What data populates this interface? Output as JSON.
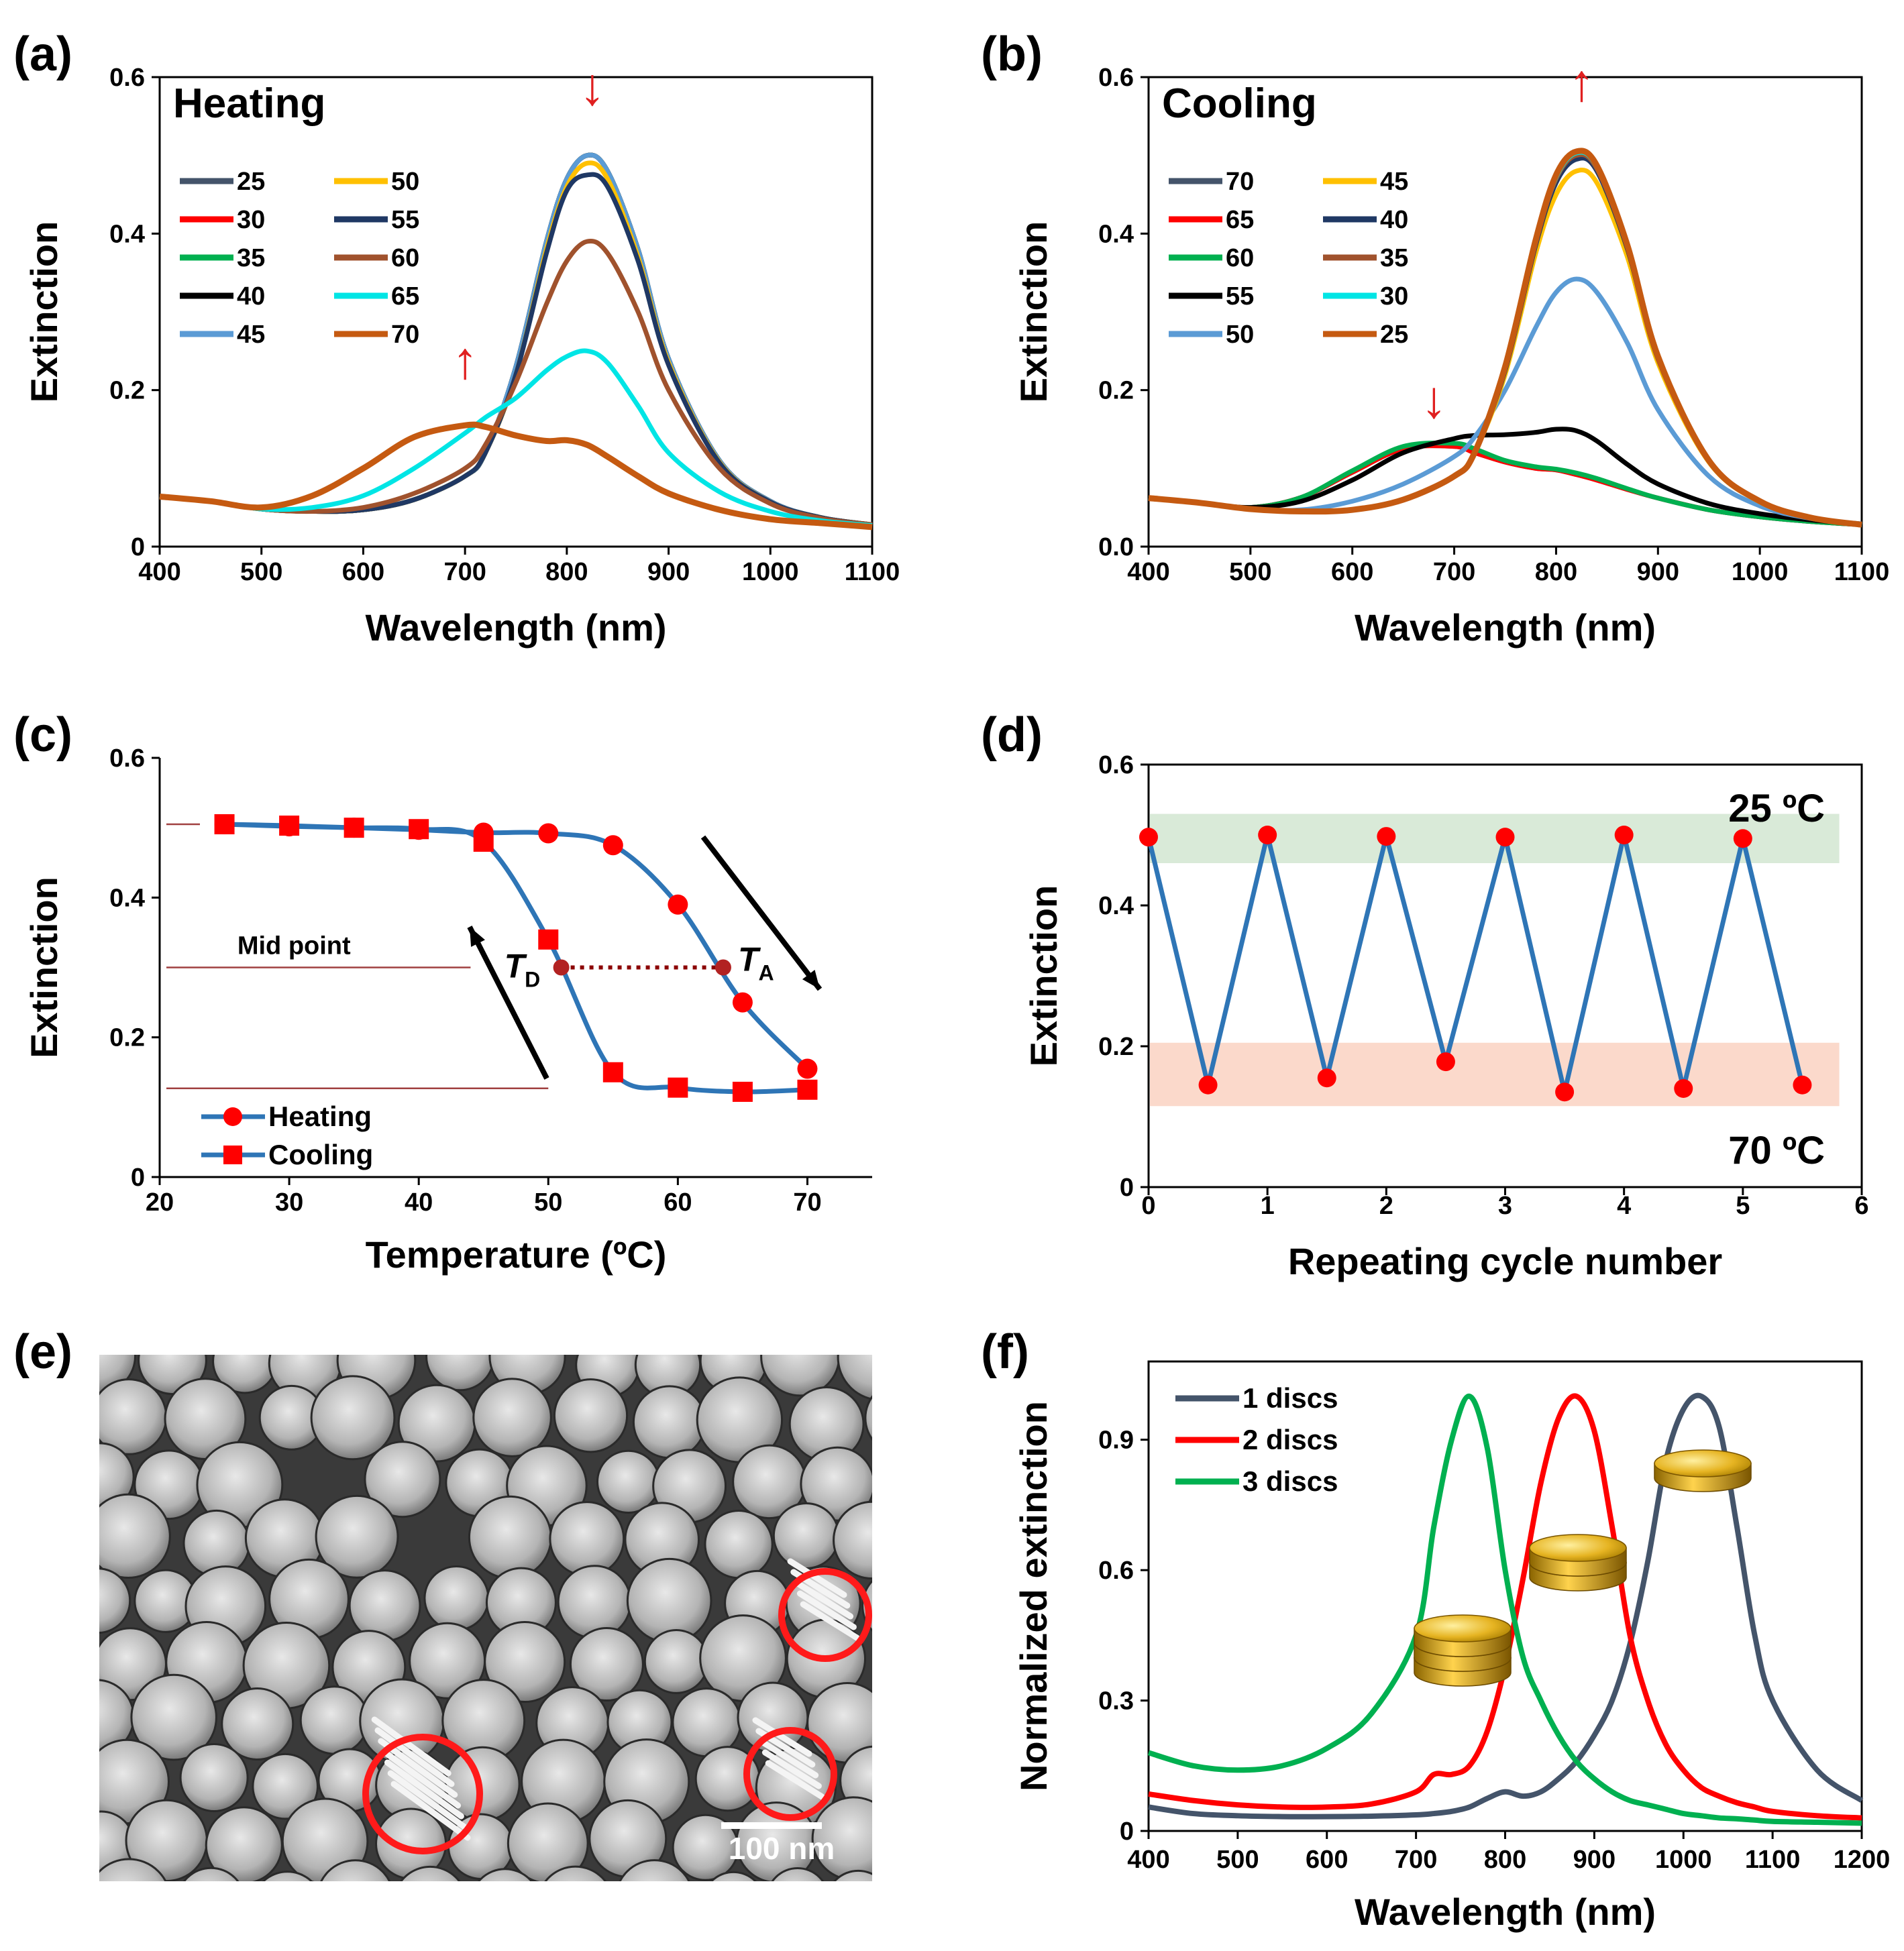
{
  "chart_data": [
    {
      "id": "a",
      "type": "line",
      "panel_label": "(a)",
      "title": "Heating",
      "xlabel": "Wavelength (nm)",
      "ylabel": "Extinction",
      "xlim": [
        400,
        1100
      ],
      "ylim": [
        0,
        0.6
      ],
      "xticks": [
        400,
        500,
        600,
        700,
        800,
        900,
        1000,
        1100
      ],
      "yticks": [
        0,
        0.2,
        0.4,
        0.6
      ],
      "ytick_labels": [
        "0",
        "0.2",
        "0.4",
        "0.6"
      ],
      "legend_position": "top-left",
      "x": [
        400,
        450,
        500,
        550,
        600,
        650,
        700,
        720,
        750,
        780,
        800,
        820,
        840,
        870,
        900,
        950,
        1000,
        1050,
        1100
      ],
      "series": [
        {
          "name": "25",
          "color": "#44546a",
          "values": [
            0.064,
            0.058,
            0.048,
            0.045,
            0.047,
            0.06,
            0.09,
            0.12,
            0.23,
            0.39,
            0.47,
            0.5,
            0.48,
            0.38,
            0.24,
            0.11,
            0.058,
            0.037,
            0.028
          ]
        },
        {
          "name": "30",
          "color": "#ff0000",
          "values": [
            0.064,
            0.058,
            0.048,
            0.045,
            0.047,
            0.06,
            0.09,
            0.12,
            0.23,
            0.39,
            0.47,
            0.5,
            0.48,
            0.38,
            0.24,
            0.11,
            0.058,
            0.037,
            0.028
          ]
        },
        {
          "name": "35",
          "color": "#00b050",
          "values": [
            0.064,
            0.058,
            0.048,
            0.045,
            0.047,
            0.06,
            0.09,
            0.12,
            0.23,
            0.39,
            0.47,
            0.5,
            0.48,
            0.38,
            0.24,
            0.11,
            0.058,
            0.037,
            0.028
          ]
        },
        {
          "name": "40",
          "color": "#000000",
          "values": [
            0.064,
            0.058,
            0.048,
            0.045,
            0.047,
            0.06,
            0.09,
            0.12,
            0.23,
            0.39,
            0.47,
            0.5,
            0.48,
            0.38,
            0.24,
            0.11,
            0.058,
            0.037,
            0.028
          ]
        },
        {
          "name": "45",
          "color": "#5b9bd5",
          "values": [
            0.064,
            0.058,
            0.048,
            0.045,
            0.047,
            0.06,
            0.09,
            0.12,
            0.23,
            0.39,
            0.47,
            0.5,
            0.48,
            0.38,
            0.24,
            0.11,
            0.058,
            0.037,
            0.028
          ]
        },
        {
          "name": "50",
          "color": "#ffc000",
          "values": [
            0.064,
            0.058,
            0.048,
            0.045,
            0.047,
            0.06,
            0.09,
            0.12,
            0.22,
            0.38,
            0.46,
            0.49,
            0.47,
            0.37,
            0.235,
            0.108,
            0.057,
            0.037,
            0.028
          ]
        },
        {
          "name": "55",
          "color": "#1f3864",
          "values": [
            0.064,
            0.058,
            0.048,
            0.045,
            0.047,
            0.06,
            0.09,
            0.12,
            0.22,
            0.375,
            0.455,
            0.475,
            0.46,
            0.365,
            0.232,
            0.107,
            0.057,
            0.037,
            0.028
          ]
        },
        {
          "name": "60",
          "color": "#a0522d",
          "values": [
            0.064,
            0.058,
            0.048,
            0.045,
            0.05,
            0.068,
            0.1,
            0.13,
            0.21,
            0.31,
            0.365,
            0.39,
            0.375,
            0.3,
            0.2,
            0.1,
            0.055,
            0.036,
            0.028
          ]
        },
        {
          "name": "65",
          "color": "#00e5e5",
          "values": [
            0.064,
            0.058,
            0.048,
            0.05,
            0.065,
            0.1,
            0.145,
            0.165,
            0.19,
            0.225,
            0.243,
            0.25,
            0.235,
            0.18,
            0.12,
            0.07,
            0.045,
            0.033,
            0.027
          ]
        },
        {
          "name": "70",
          "color": "#c55a11",
          "values": [
            0.064,
            0.058,
            0.05,
            0.065,
            0.1,
            0.14,
            0.155,
            0.153,
            0.142,
            0.135,
            0.136,
            0.13,
            0.115,
            0.09,
            0.068,
            0.047,
            0.035,
            0.03,
            0.025
          ]
        }
      ],
      "annotations": [
        {
          "text": "↓",
          "x": 825,
          "y": 0.565,
          "color": "#e02020"
        },
        {
          "text": "↑",
          "x": 700,
          "y": 0.215,
          "color": "#e02020"
        }
      ]
    },
    {
      "id": "b",
      "type": "line",
      "panel_label": "(b)",
      "title": "Cooling",
      "xlabel": "Wavelength (nm)",
      "ylabel": "Extinction",
      "xlim": [
        400,
        1100
      ],
      "ylim": [
        0,
        0.6
      ],
      "xticks": [
        400,
        500,
        600,
        700,
        800,
        900,
        1000,
        1100
      ],
      "yticks": [
        0,
        0.2,
        0.4,
        0.6
      ],
      "ytick_labels": [
        "0.0",
        "0.2",
        "0.4",
        "0.6"
      ],
      "legend_position": "top-left",
      "x": [
        400,
        450,
        500,
        550,
        600,
        650,
        700,
        720,
        750,
        780,
        800,
        820,
        840,
        870,
        900,
        950,
        1000,
        1050,
        1100
      ],
      "series": [
        {
          "name": "70",
          "color": "#44546a",
          "values": [
            0.062,
            0.056,
            0.05,
            0.063,
            0.095,
            0.125,
            0.128,
            0.12,
            0.108,
            0.1,
            0.098,
            0.092,
            0.085,
            0.073,
            0.062,
            0.047,
            0.038,
            0.032,
            0.028
          ]
        },
        {
          "name": "65",
          "color": "#ff0000",
          "values": [
            0.062,
            0.056,
            0.05,
            0.063,
            0.095,
            0.125,
            0.128,
            0.12,
            0.108,
            0.1,
            0.098,
            0.092,
            0.085,
            0.073,
            0.062,
            0.047,
            0.038,
            0.032,
            0.028
          ]
        },
        {
          "name": "60",
          "color": "#00b050",
          "values": [
            0.062,
            0.056,
            0.05,
            0.063,
            0.097,
            0.128,
            0.132,
            0.125,
            0.11,
            0.102,
            0.099,
            0.094,
            0.087,
            0.074,
            0.062,
            0.047,
            0.038,
            0.032,
            0.028
          ]
        },
        {
          "name": "55",
          "color": "#000000",
          "values": [
            0.062,
            0.056,
            0.05,
            0.058,
            0.085,
            0.12,
            0.138,
            0.142,
            0.143,
            0.146,
            0.15,
            0.148,
            0.135,
            0.105,
            0.08,
            0.055,
            0.042,
            0.034,
            0.029
          ]
        },
        {
          "name": "50",
          "color": "#5b9bd5",
          "values": [
            0.062,
            0.056,
            0.048,
            0.047,
            0.058,
            0.08,
            0.115,
            0.14,
            0.2,
            0.28,
            0.325,
            0.342,
            0.325,
            0.26,
            0.175,
            0.09,
            0.052,
            0.036,
            0.029
          ]
        },
        {
          "name": "45",
          "color": "#ffc000",
          "values": [
            0.062,
            0.056,
            0.048,
            0.045,
            0.047,
            0.06,
            0.09,
            0.12,
            0.22,
            0.375,
            0.45,
            0.48,
            0.465,
            0.37,
            0.235,
            0.108,
            0.057,
            0.037,
            0.028
          ]
        },
        {
          "name": "40",
          "color": "#1f3864",
          "values": [
            0.062,
            0.056,
            0.048,
            0.045,
            0.047,
            0.06,
            0.09,
            0.12,
            0.225,
            0.385,
            0.465,
            0.495,
            0.48,
            0.38,
            0.24,
            0.11,
            0.058,
            0.037,
            0.028
          ]
        },
        {
          "name": "35",
          "color": "#a0522d",
          "values": [
            0.062,
            0.056,
            0.048,
            0.045,
            0.047,
            0.06,
            0.09,
            0.12,
            0.227,
            0.388,
            0.47,
            0.5,
            0.483,
            0.382,
            0.241,
            0.11,
            0.058,
            0.037,
            0.028
          ]
        },
        {
          "name": "30",
          "color": "#00e5e5",
          "values": [
            0.062,
            0.056,
            0.048,
            0.045,
            0.047,
            0.06,
            0.09,
            0.12,
            0.228,
            0.39,
            0.472,
            0.503,
            0.485,
            0.383,
            0.242,
            0.11,
            0.058,
            0.037,
            0.028
          ]
        },
        {
          "name": "25",
          "color": "#c55a11",
          "values": [
            0.062,
            0.056,
            0.048,
            0.045,
            0.047,
            0.06,
            0.09,
            0.12,
            0.23,
            0.392,
            0.475,
            0.505,
            0.487,
            0.385,
            0.243,
            0.11,
            0.058,
            0.037,
            0.028
          ]
        }
      ],
      "annotations": [
        {
          "text": "↑",
          "x": 825,
          "y": 0.57,
          "color": "#e02020"
        },
        {
          "text": "↓",
          "x": 680,
          "y": 0.165,
          "color": "#e02020"
        }
      ]
    },
    {
      "id": "c",
      "type": "line",
      "panel_label": "(c)",
      "xlabel": "Temperature (ºC)",
      "ylabel": "Extinction",
      "xlim": [
        20,
        75
      ],
      "ylim": [
        0,
        0.6
      ],
      "xticks": [
        20,
        30,
        40,
        50,
        60,
        70
      ],
      "yticks": [
        0,
        0.2,
        0.4,
        0.6
      ],
      "ytick_labels": [
        "0",
        "0.2",
        "0.4",
        "0.6"
      ],
      "legend_position": "bottom-left",
      "x": [
        25,
        30,
        35,
        40,
        45,
        50,
        55,
        60,
        65,
        70
      ],
      "series": [
        {
          "name": "Heating",
          "marker": "circle",
          "line_color": "#2e75b6",
          "marker_color": "#ff0000",
          "values": [
            0.505,
            0.502,
            0.5,
            0.497,
            0.493,
            0.492,
            0.475,
            0.39,
            0.25,
            0.155
          ]
        },
        {
          "name": "Cooling",
          "marker": "square",
          "line_color": "#2e75b6",
          "marker_color": "#ff0000",
          "values": [
            0.505,
            0.503,
            0.5,
            0.498,
            0.48,
            0.34,
            0.15,
            0.128,
            0.122,
            0.125
          ]
        }
      ],
      "midpoint": {
        "label": "Mid point",
        "y": 0.3,
        "td_x": 51,
        "ta_x": 63.5,
        "td_label": "T",
        "td_sub": "D",
        "ta_label": "T",
        "ta_sub": "A"
      },
      "reference_lines_y": [
        0.505,
        0.3,
        0.127
      ]
    },
    {
      "id": "d",
      "type": "line",
      "panel_label": "(d)",
      "xlabel": "Repeating cycle number",
      "ylabel": "Extinction",
      "xlim": [
        0,
        6
      ],
      "ylim": [
        0,
        0.6
      ],
      "xticks": [
        0,
        1,
        2,
        3,
        4,
        5,
        6
      ],
      "yticks": [
        0,
        0.2,
        0.4,
        0.6
      ],
      "ytick_labels": [
        "0",
        "0.2",
        "0.4",
        "0.6"
      ],
      "x": [
        0,
        0.5,
        1,
        1.5,
        2,
        2.5,
        3,
        3.5,
        4,
        4.5,
        5,
        5.5
      ],
      "values": [
        0.497,
        0.145,
        0.5,
        0.155,
        0.498,
        0.178,
        0.497,
        0.135,
        0.5,
        0.14,
        0.495,
        0.145
      ],
      "line_color": "#2e75b6",
      "marker_color": "#ff0000",
      "bands": [
        {
          "label": "25 ºC",
          "y0": 0.46,
          "y1": 0.53,
          "color": "#d5e8d4"
        },
        {
          "label": "70 ºC",
          "y0": 0.115,
          "y1": 0.205,
          "color": "#fbd5c5"
        }
      ]
    },
    {
      "id": "f",
      "type": "line",
      "panel_label": "(f)",
      "xlabel": "Wavelength (nm)",
      "ylabel": "Normalized extinction",
      "xlim": [
        400,
        1200
      ],
      "ylim": [
        0,
        1.08
      ],
      "xticks": [
        400,
        500,
        600,
        700,
        800,
        900,
        1000,
        1100,
        1200
      ],
      "yticks": [
        0,
        0.3,
        0.6,
        0.9
      ],
      "ytick_labels": [
        "0",
        "0.3",
        "0.6",
        "0.9"
      ],
      "legend_position": "top-left",
      "x": [
        400,
        450,
        500,
        550,
        600,
        650,
        700,
        720,
        740,
        760,
        780,
        800,
        820,
        840,
        860,
        880,
        900,
        920,
        940,
        960,
        980,
        1000,
        1020,
        1040,
        1060,
        1080,
        1100,
        1150,
        1200
      ],
      "series": [
        {
          "name": "1 discs",
          "color": "#44546a",
          "values": [
            0.055,
            0.04,
            0.035,
            0.033,
            0.033,
            0.034,
            0.037,
            0.04,
            0.045,
            0.055,
            0.075,
            0.09,
            0.08,
            0.09,
            0.12,
            0.16,
            0.22,
            0.3,
            0.43,
            0.62,
            0.85,
            0.97,
            1.0,
            0.93,
            0.7,
            0.45,
            0.3,
            0.14,
            0.07
          ]
        },
        {
          "name": "2 discs",
          "color": "#ff0000",
          "values": [
            0.085,
            0.07,
            0.06,
            0.055,
            0.055,
            0.062,
            0.09,
            0.13,
            0.13,
            0.15,
            0.23,
            0.38,
            0.58,
            0.8,
            0.95,
            1.0,
            0.92,
            0.7,
            0.45,
            0.3,
            0.2,
            0.14,
            0.1,
            0.08,
            0.065,
            0.055,
            0.045,
            0.035,
            0.03
          ]
        },
        {
          "name": "3 discs",
          "color": "#00b050",
          "values": [
            0.18,
            0.15,
            0.14,
            0.15,
            0.19,
            0.27,
            0.45,
            0.7,
            0.9,
            1.0,
            0.88,
            0.6,
            0.4,
            0.3,
            0.22,
            0.16,
            0.12,
            0.09,
            0.07,
            0.06,
            0.05,
            0.04,
            0.035,
            0.03,
            0.028,
            0.025,
            0.022,
            0.02,
            0.018
          ]
        }
      ]
    }
  ],
  "panel_e": {
    "label": "(e)",
    "scale_bar": "100 nm"
  }
}
